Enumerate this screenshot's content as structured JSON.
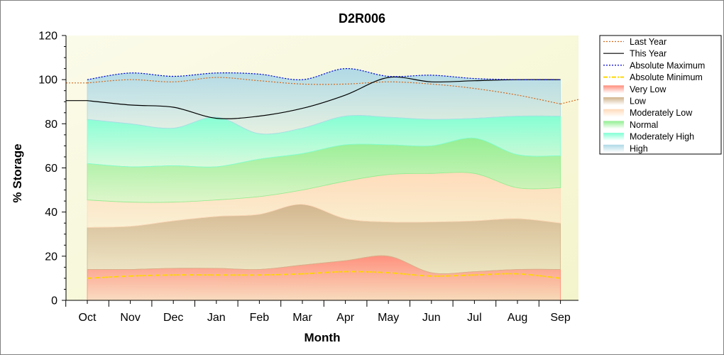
{
  "chart_data": {
    "type": "area",
    "title": "D2R006",
    "xlabel": "Month",
    "ylabel": "% Storage",
    "ylim": [
      0,
      120
    ],
    "yticks": [
      0,
      20,
      40,
      60,
      80,
      100,
      120
    ],
    "categories": [
      "Oct",
      "Nov",
      "Dec",
      "Jan",
      "Feb",
      "Mar",
      "Apr",
      "May",
      "Jun",
      "Jul",
      "Aug",
      "Sep"
    ],
    "grid": false,
    "legend_position": "right",
    "band_bounds": {
      "very_low_top": [
        14,
        14,
        14.5,
        14.5,
        14,
        16,
        18,
        20,
        12.5,
        13,
        14,
        14
      ],
      "low_top": [
        33,
        33.5,
        36,
        38,
        39,
        43.5,
        37,
        35.5,
        35.5,
        36,
        37,
        35
      ],
      "moderately_low_top": [
        45.5,
        44.5,
        44.5,
        45.5,
        47,
        50,
        54,
        57,
        57.5,
        57.5,
        51,
        51
      ],
      "normal_top": [
        62,
        60.5,
        61,
        60.5,
        64,
        66.5,
        70.5,
        70.5,
        70,
        73.5,
        66,
        65.5
      ],
      "moderately_high_top": [
        82,
        80,
        78,
        83,
        75.5,
        78,
        83.5,
        83,
        82,
        82.5,
        83.5,
        83.5
      ],
      "high_top": [
        100,
        103,
        101.5,
        103,
        102.5,
        100,
        105,
        101.5,
        102,
        100.5,
        100,
        100
      ]
    },
    "series": [
      {
        "name": "Last Year",
        "color": "#d2691e",
        "style": "dotted",
        "values": [
          98.5,
          100,
          99,
          101,
          99.5,
          98,
          98,
          99,
          98,
          96,
          93,
          89
        ]
      },
      {
        "name": "This Year",
        "color": "#000000",
        "style": "solid",
        "values": [
          90.5,
          88.5,
          87.5,
          82.5,
          83.5,
          87,
          93,
          101,
          99,
          99.5,
          100,
          100
        ]
      },
      {
        "name": "Absolute Maximum",
        "color": "#0000cc",
        "style": "dotted",
        "values": [
          100,
          103,
          101.5,
          103,
          102.5,
          100,
          105,
          101.5,
          102,
          100.5,
          100,
          100
        ]
      },
      {
        "name": "Absolute Minimum",
        "color": "#ffd700",
        "style": "dashdot",
        "values": [
          10,
          11,
          11.5,
          11.5,
          11.5,
          12,
          13,
          12.5,
          11,
          11.5,
          12,
          10
        ]
      },
      {
        "name": "Very Low",
        "color": "#ff8c7a",
        "style": "band"
      },
      {
        "name": "Low",
        "color": "#d2b48c",
        "style": "band"
      },
      {
        "name": "Moderately Low",
        "color": "#ffdab9",
        "style": "band"
      },
      {
        "name": "Normal",
        "color": "#90ee90",
        "style": "band"
      },
      {
        "name": "Moderately High",
        "color": "#7fffd4",
        "style": "band"
      },
      {
        "name": "High",
        "color": "#add8e6",
        "style": "band"
      }
    ]
  }
}
